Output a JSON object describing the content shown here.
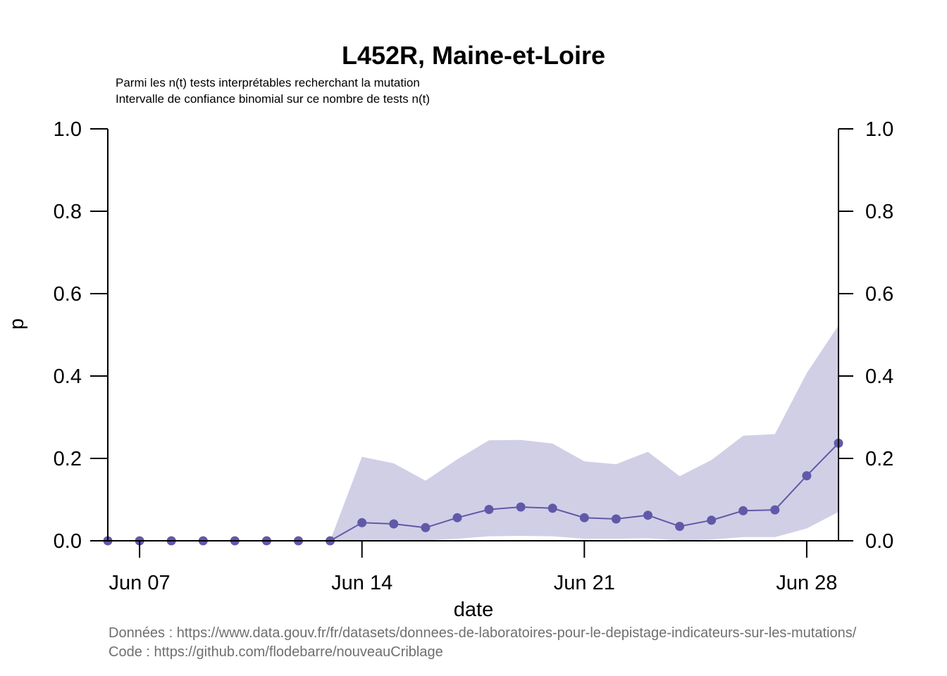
{
  "chart_data": {
    "type": "line",
    "title": "L452R, Maine-et-Loire",
    "subtitle_lines": [
      "Parmi les n(t) tests interprétables recherchant la mutation",
      "Intervalle de confiance binomial sur ce nombre de tests n(t)"
    ],
    "xlabel": "date",
    "ylabel": "p",
    "x": [
      "2021-06-06",
      "2021-06-07",
      "2021-06-08",
      "2021-06-09",
      "2021-06-10",
      "2021-06-11",
      "2021-06-12",
      "2021-06-13",
      "2021-06-14",
      "2021-06-15",
      "2021-06-16",
      "2021-06-17",
      "2021-06-18",
      "2021-06-19",
      "2021-06-20",
      "2021-06-21",
      "2021-06-22",
      "2021-06-23",
      "2021-06-24",
      "2021-06-25",
      "2021-06-26",
      "2021-06-27",
      "2021-06-28",
      "2021-06-29"
    ],
    "xlim": [
      "2021-06-06",
      "2021-06-29"
    ],
    "x_ticks": [
      "2021-06-07",
      "2021-06-14",
      "2021-06-21",
      "2021-06-28"
    ],
    "x_tick_labels": [
      "Jun 07",
      "Jun 14",
      "Jun 21",
      "Jun 28"
    ],
    "ylim": [
      0,
      1
    ],
    "y_ticks": [
      0.0,
      0.2,
      0.4,
      0.6,
      0.8,
      1.0
    ],
    "y_tick_labels": [
      "0.0",
      "0.2",
      "0.4",
      "0.6",
      "0.8",
      "1.0"
    ],
    "series": [
      {
        "values": [
          0,
          0,
          0,
          0,
          0,
          0,
          0,
          0,
          0.044,
          0.041,
          0.032,
          0.056,
          0.076,
          0.082,
          0.079,
          0.056,
          0.053,
          0.062,
          0.035,
          0.05,
          0.073,
          0.075,
          0.158,
          0.237
        ],
        "ci_lower": [
          0,
          0,
          0,
          0,
          0,
          0,
          0,
          0,
          0.002,
          0.002,
          0.001,
          0.005,
          0.011,
          0.012,
          0.011,
          0.005,
          0.005,
          0.006,
          0.001,
          0.003,
          0.009,
          0.009,
          0.03,
          0.07
        ],
        "ci_upper": [
          0,
          0,
          0,
          0,
          0,
          0,
          0,
          0,
          0.204,
          0.188,
          0.146,
          0.198,
          0.244,
          0.245,
          0.236,
          0.193,
          0.186,
          0.216,
          0.157,
          0.196,
          0.255,
          0.259,
          0.407,
          0.523
        ],
        "line_color": "#6159a8",
        "band_color": "#d1cfe6"
      }
    ],
    "grid": false,
    "legend": "none",
    "right_axis": true
  },
  "footer": {
    "data_source": "Données : https://www.data.gouv.fr/fr/datasets/donnees-de-laboratoires-pour-le-depistage-indicateurs-sur-les-mutations/",
    "code_source": "Code : https://github.com/flodebarre/nouveauCriblage"
  }
}
